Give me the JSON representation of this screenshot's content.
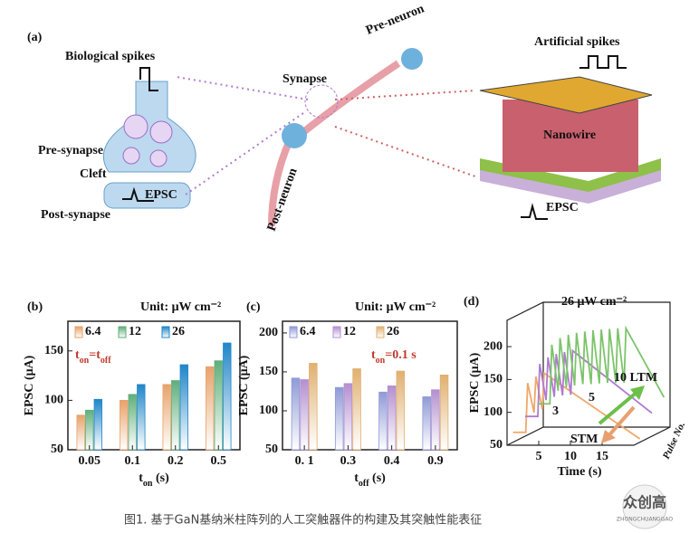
{
  "panel_a": {
    "label": "(a)",
    "biological_spikes": "Biological spikes",
    "pre_synapse": "Pre-synapse",
    "cleft": "Cleft",
    "post_synapse": "Post-synapse",
    "epsc_bio": "EPSC",
    "synapse": "Synapse",
    "pre_neuron": "Pre-neuron",
    "post_neuron": "Post-neuron",
    "artificial_spikes": "Artificial spikes",
    "nanowire": "Nanowire",
    "epsc_device": "EPSC"
  },
  "chart_data": [
    {
      "type": "bar",
      "label": "(b)",
      "unit": "Unit: μW cm⁻²",
      "annotation": [
        "t",
        "on",
        "=t",
        "off"
      ],
      "y_label": "EPSC (μA)",
      "x_label": [
        "t",
        "on",
        " (s)"
      ],
      "categories": [
        "0.05",
        "0.1",
        "0.2",
        "0.5"
      ],
      "series": [
        {
          "name": "6.4",
          "color": "#e8a26a",
          "values": [
            85,
            100,
            116,
            134
          ]
        },
        {
          "name": "12",
          "color": "#5fae7a",
          "values": [
            90,
            106,
            120,
            140
          ]
        },
        {
          "name": "26",
          "color": "#1f86c8",
          "values": [
            101,
            116,
            136,
            158
          ]
        }
      ],
      "ylim": [
        50,
        180
      ],
      "yticks": [
        50,
        100,
        150
      ]
    },
    {
      "type": "bar",
      "label": "(c)",
      "unit": "Unit: μW cm⁻²",
      "annotation": [
        "t",
        "on",
        "=0.1 s"
      ],
      "y_label": "EPSC (μA)",
      "x_label": [
        "t",
        "off",
        " (s)"
      ],
      "categories": [
        "0. 1",
        "0.3",
        "0.4",
        "0.9"
      ],
      "series": [
        {
          "name": "6.4",
          "color": "#8f9ad6",
          "values": [
            142,
            130,
            124,
            118
          ]
        },
        {
          "name": "12",
          "color": "#b48fd0",
          "values": [
            140,
            135,
            132,
            127
          ]
        },
        {
          "name": "26",
          "color": "#e0b070",
          "values": [
            161,
            154,
            151,
            146
          ]
        }
      ],
      "ylim": [
        50,
        215
      ],
      "yticks": [
        50,
        100,
        150,
        200
      ]
    },
    {
      "type": "line",
      "label": "(d)",
      "title": "26 μW cm⁻²",
      "y_label": "EPSC (μA)",
      "x_label": "Time (s)",
      "depth_label": "Pulse No.",
      "annotations": [
        "3",
        "5",
        "10 LTM",
        "STM"
      ],
      "series": [
        {
          "name": "3",
          "color": "#f0a868",
          "x": [
            0,
            2,
            2.3,
            3.3,
            3.6,
            4.6,
            4.9,
            20
          ],
          "values": [
            65,
            65,
            140,
            95,
            150,
            100,
            155,
            55
          ]
        },
        {
          "name": "5",
          "color": "#b07ad0",
          "x": [
            0,
            2,
            2.3,
            3.3,
            3.6,
            4.6,
            4.9,
            5.9,
            6.2,
            7.2,
            7.5,
            20
          ],
          "values": [
            80,
            80,
            160,
            105,
            170,
            110,
            175,
            112,
            178,
            113,
            180,
            85
          ]
        },
        {
          "name": "10",
          "color": "#7cc46a",
          "x": [
            0,
            2,
            2.3,
            3.3,
            3.6,
            4.6,
            4.9,
            5.9,
            6.2,
            7.2,
            7.5,
            8.5,
            8.8,
            9.8,
            10.1,
            11.1,
            11.4,
            12.4,
            12.7,
            13.7,
            14,
            20
          ],
          "values": [
            90,
            90,
            180,
            110,
            190,
            115,
            195,
            118,
            198,
            120,
            200,
            120,
            202,
            121,
            203,
            122,
            204,
            122,
            205,
            122,
            205,
            100
          ]
        }
      ],
      "xlim": [
        0,
        20
      ],
      "xticks": [
        5,
        10,
        15
      ],
      "ylim": [
        50,
        240
      ],
      "yticks": [
        50,
        100,
        150,
        200
      ]
    }
  ],
  "caption": "图1. 基于GaN基纳米柱阵列的人工突触器件的构建及其突触性能表征",
  "watermark": {
    "name": "众创高",
    "sub": "ZHONGCHUANGGAO"
  }
}
